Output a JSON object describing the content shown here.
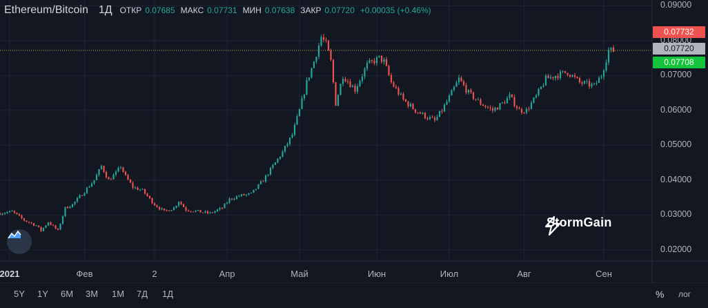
{
  "legend": {
    "symbol": "Ethereum/Bitcoin",
    "timeframe": "1Д",
    "open_label": "ОТКР",
    "open_value": "0.07685",
    "high_label": "МАКС",
    "high_value": "0.07731",
    "low_label": "МИН",
    "low_value": "0.07638",
    "close_label": "ЗАКР",
    "close_value": "0.07720",
    "change": "+0.00035 (+0.46%)"
  },
  "price_badges": {
    "high": "0.07732",
    "current": "0.07720",
    "low": "0.07708"
  },
  "brand": {
    "name": "StormGain"
  },
  "toolbar": {
    "timeframes": [
      "5Y",
      "1Y",
      "6M",
      "3M",
      "1M",
      "7Д",
      "1Д"
    ],
    "percent_label": "%",
    "log_label": "лог"
  },
  "colors": {
    "background": "#131722",
    "up": "#26a69a",
    "down": "#ef5350",
    "badge_high": "#ef5350",
    "badge_current": "#b2b5be",
    "badge_low": "#14c43a"
  },
  "icons": [
    "stormgain-logo-icon",
    "chart-float-icon"
  ],
  "chart_data": {
    "type": "candlestick",
    "y_axis": {
      "ticks": [
        "0.09000",
        "0.08000",
        "0.07000",
        "0.06000",
        "0.05000",
        "0.04000",
        "0.03000",
        "0.02000"
      ],
      "range": [
        0.0168,
        0.09165
      ]
    },
    "x_axis": {
      "ticks": [
        "2021",
        "Фев",
        "2",
        "Апр",
        "Май",
        "Июн",
        "Июл",
        "Авг",
        "Сен"
      ],
      "tick_days": [
        2,
        33,
        62,
        92,
        122,
        154,
        184,
        215,
        248
      ]
    },
    "anchor_points": [
      [
        -2,
        0.0305
      ],
      [
        3,
        0.031
      ],
      [
        8,
        0.0285
      ],
      [
        13,
        0.027
      ],
      [
        15,
        0.0255
      ],
      [
        18,
        0.028
      ],
      [
        22,
        0.0255
      ],
      [
        25,
        0.032
      ],
      [
        28,
        0.033
      ],
      [
        32,
        0.036
      ],
      [
        37,
        0.04
      ],
      [
        40,
        0.044
      ],
      [
        43,
        0.04
      ],
      [
        46,
        0.042
      ],
      [
        48,
        0.044
      ],
      [
        50,
        0.041
      ],
      [
        53,
        0.038
      ],
      [
        57,
        0.037
      ],
      [
        62,
        0.033
      ],
      [
        66,
        0.031
      ],
      [
        70,
        0.032
      ],
      [
        72,
        0.034
      ],
      [
        75,
        0.0315
      ],
      [
        80,
        0.031
      ],
      [
        85,
        0.0305
      ],
      [
        90,
        0.032
      ],
      [
        93,
        0.0345
      ],
      [
        97,
        0.0355
      ],
      [
        102,
        0.036
      ],
      [
        107,
        0.04
      ],
      [
        110,
        0.043
      ],
      [
        115,
        0.048
      ],
      [
        119,
        0.053
      ],
      [
        122,
        0.06
      ],
      [
        125,
        0.068
      ],
      [
        128,
        0.074
      ],
      [
        131,
        0.081
      ],
      [
        133,
        0.079
      ],
      [
        135,
        0.074
      ],
      [
        137,
        0.062
      ],
      [
        140,
        0.07
      ],
      [
        145,
        0.066
      ],
      [
        150,
        0.073
      ],
      [
        155,
        0.075
      ],
      [
        157,
        0.074
      ],
      [
        160,
        0.068
      ],
      [
        165,
        0.063
      ],
      [
        170,
        0.06
      ],
      [
        175,
        0.058
      ],
      [
        178,
        0.057
      ],
      [
        181,
        0.06
      ],
      [
        185,
        0.065
      ],
      [
        188,
        0.069
      ],
      [
        192,
        0.065
      ],
      [
        197,
        0.062
      ],
      [
        202,
        0.06
      ],
      [
        206,
        0.062
      ],
      [
        209,
        0.064
      ],
      [
        213,
        0.06
      ],
      [
        216,
        0.06
      ],
      [
        220,
        0.064
      ],
      [
        224,
        0.069
      ],
      [
        228,
        0.07
      ],
      [
        233,
        0.071
      ],
      [
        238,
        0.068
      ],
      [
        244,
        0.067
      ],
      [
        247,
        0.07
      ],
      [
        250,
        0.0772
      ],
      [
        253,
        0.077
      ]
    ],
    "last_price": 0.0772,
    "legend": "none"
  }
}
